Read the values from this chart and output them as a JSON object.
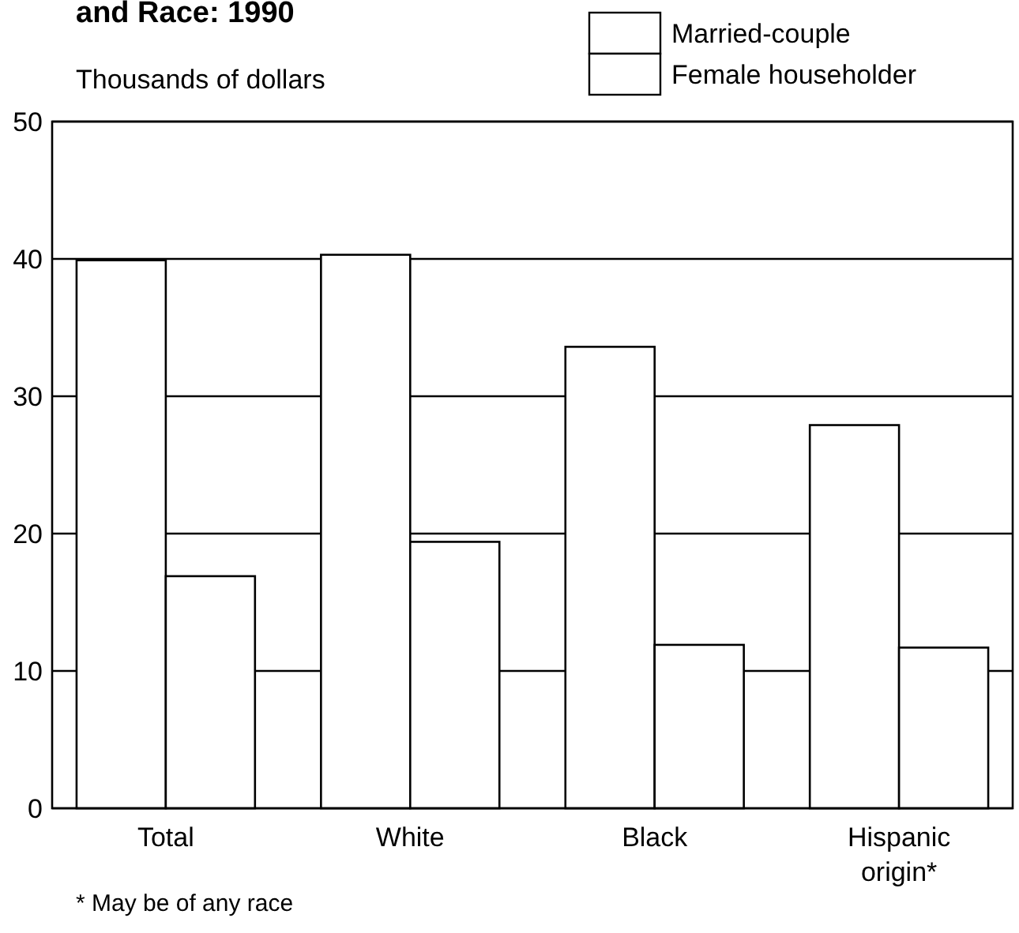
{
  "chart_data": {
    "type": "bar",
    "title": "and Race: 1990",
    "ylabel": "Thousands of dollars",
    "categories": [
      "Total",
      "White",
      "Black",
      "Hispanic origin*"
    ],
    "series": [
      {
        "name": "Married-couple",
        "color": "#ffffff",
        "values": [
          39.9,
          40.3,
          33.6,
          27.9
        ]
      },
      {
        "name": "Female householder",
        "color": "#ffffff",
        "values": [
          16.9,
          19.4,
          11.9,
          11.7
        ]
      }
    ],
    "ylim": [
      0,
      50
    ],
    "yticks": [
      0,
      10,
      20,
      30,
      40,
      50
    ],
    "grid": "y",
    "legend": "top right",
    "annotations": [
      "* May be of any race"
    ]
  }
}
